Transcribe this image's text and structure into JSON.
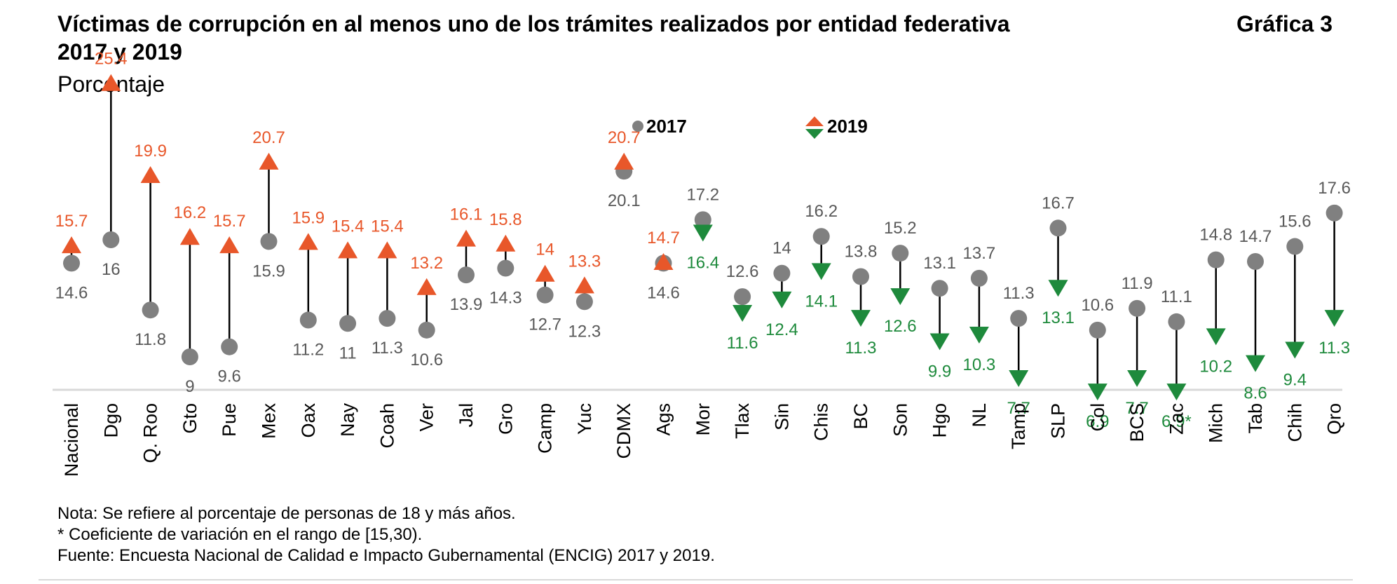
{
  "header": {
    "title_line1": "Víctimas de corrupción en al menos uno de los trámites realizados por entidad federativa",
    "title_line2": "2017 y 2019",
    "figure_label": "Gráfica 3",
    "subtitle": "Porcentaje"
  },
  "colors": {
    "series_2017": "#808080",
    "increase_2019": "#e8572a",
    "decrease_2019": "#1e8a3c",
    "connector": "#000000",
    "label_2017": "#595959",
    "axis_rule": "#d9d9d9"
  },
  "chart_data": {
    "type": "scatter",
    "subtype": "dumbbell",
    "categories": [
      "Nacional",
      "Dgo",
      "Q. Roo",
      "Gto",
      "Pue",
      "Mex",
      "Oax",
      "Nay",
      "Coah",
      "Ver",
      "Jal",
      "Gro",
      "Camp",
      "Yuc",
      "CDMX",
      "Ags",
      "Mor",
      "Tlax",
      "Sin",
      "Chis",
      "BC",
      "Son",
      "Hgo",
      "NL",
      "Tamp",
      "SLP",
      "Col",
      "BCS",
      "Zac",
      "Mich",
      "Tab",
      "Chih",
      "Qro"
    ],
    "series": [
      {
        "name": "2017",
        "marker": "circle",
        "values": [
          14.6,
          16,
          11.8,
          9,
          9.6,
          15.9,
          11.2,
          11,
          11.3,
          10.6,
          13.9,
          14.3,
          12.7,
          12.3,
          20.1,
          14.6,
          17.2,
          12.6,
          14,
          16.2,
          13.8,
          15.2,
          13.1,
          13.7,
          11.3,
          16.7,
          10.6,
          11.9,
          11.1,
          14.8,
          14.7,
          15.6,
          17.6
        ]
      },
      {
        "name": "2019",
        "marker": "triangle",
        "values": [
          15.7,
          25.4,
          19.9,
          16.2,
          15.7,
          20.7,
          15.9,
          15.4,
          15.4,
          13.2,
          16.1,
          15.8,
          14,
          13.3,
          20.7,
          14.7,
          16.4,
          11.6,
          12.4,
          14.1,
          11.3,
          12.6,
          9.9,
          10.3,
          7.7,
          13.1,
          6.9,
          7.7,
          6.9,
          10.2,
          8.6,
          9.4,
          11.3
        ]
      }
    ],
    "value_labels_2017": [
      "14.6",
      "16",
      "11.8",
      "9",
      "9.6",
      "15.9",
      "11.2",
      "11",
      "11.3",
      "10.6",
      "13.9",
      "14.3",
      "12.7",
      "12.3",
      "20.1",
      "14.6",
      "17.2",
      "12.6",
      "14",
      "16.2",
      "13.8",
      "15.2",
      "13.1",
      "13.7",
      "11.3",
      "16.7",
      "10.6",
      "11.9",
      "11.1",
      "14.8",
      "14.7",
      "15.6",
      "17.6"
    ],
    "value_labels_2019": [
      "15.7",
      "25.4",
      "19.9",
      "16.2",
      "15.7",
      "20.7",
      "15.9",
      "15.4",
      "15.4",
      "13.2",
      "16.1",
      "15.8",
      "14",
      "13.3",
      "20.7",
      "14.7",
      "16.4",
      "11.6",
      "12.4",
      "14.1",
      "11.3",
      "12.6",
      "9.9",
      "10.3",
      "7.7",
      "13.1",
      "6.9",
      "7.7",
      "6.9*",
      "10.2",
      "8.6",
      "9.4",
      "11.3"
    ],
    "legend": [
      {
        "label": "2017",
        "marker": "circle"
      },
      {
        "label": "2019",
        "marker": "triangles"
      }
    ],
    "legend_position": "top-center",
    "ylabel": "Porcentaje",
    "ylim": [
      5,
      26
    ],
    "grid": false
  },
  "footer": {
    "note1": "Nota: Se refiere al porcentaje de personas de 18 y más años.",
    "note2": "* Coeficiente de variación en el rango de [15,30).",
    "source": "Fuente: Encuesta Nacional de Calidad e Impacto Gubernamental (ENCIG) 2017 y 2019."
  }
}
